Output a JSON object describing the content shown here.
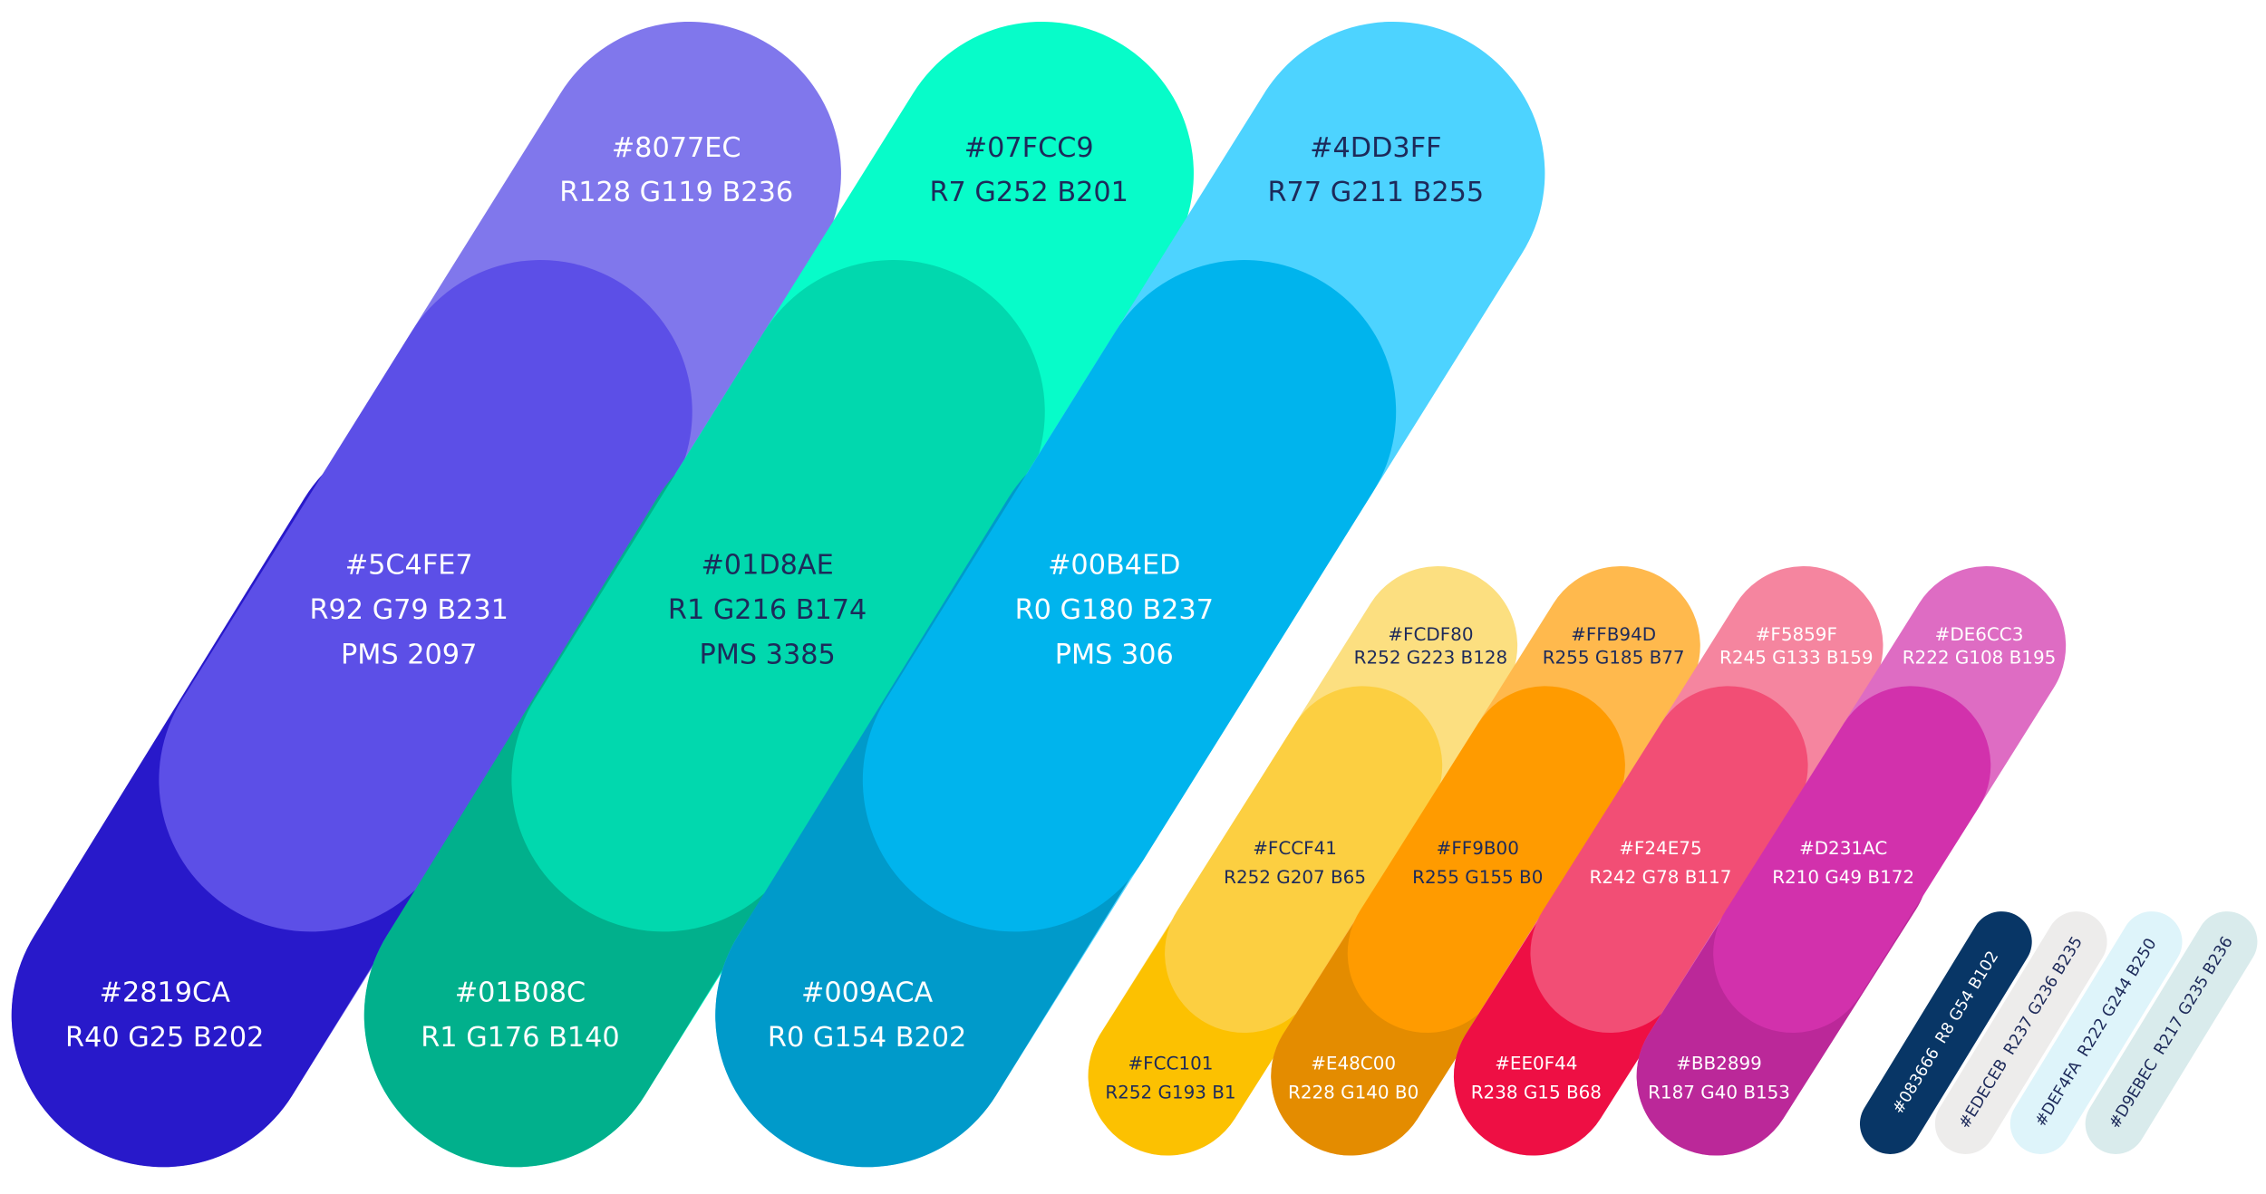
{
  "big": [
    {
      "swatches": [
        {
          "hex": "#8077EC",
          "rgb": "R128 G119 B236"
        },
        {
          "hex": "#5C4FE7",
          "rgb": "R92 G79 B231",
          "pms": "PMS 2097"
        },
        {
          "hex": "#2819CA",
          "rgb": "R40 G25 B202"
        }
      ]
    },
    {
      "swatches": [
        {
          "hex": "#07FCC9",
          "rgb": "R7 G252 B201"
        },
        {
          "hex": "#01D8AE",
          "rgb": "R1 G216 B174",
          "pms": "PMS 3385"
        },
        {
          "hex": "#01B08C",
          "rgb": "R1 G176 B140"
        }
      ]
    },
    {
      "swatches": [
        {
          "hex": "#4DD3FF",
          "rgb": "R77 G211 B255"
        },
        {
          "hex": "#00B4ED",
          "rgb": "R0 G180 B237",
          "pms": "PMS 306"
        },
        {
          "hex": "#009ACA",
          "rgb": "R0 G154 B202"
        }
      ]
    }
  ],
  "small": [
    {
      "swatches": [
        {
          "hex": "#FCDF80",
          "rgb": "R252 G223 B128"
        },
        {
          "hex": "#FCCF41",
          "rgb": "R252 G207 B65"
        },
        {
          "hex": "#FCC101",
          "rgb": "R252 G193 B1"
        }
      ]
    },
    {
      "swatches": [
        {
          "hex": "#FFB94D",
          "rgb": "R255 G185 B77"
        },
        {
          "hex": "#FF9B00",
          "rgb": "R255 G155 B0"
        },
        {
          "hex": "#E48C00",
          "rgb": "R228 G140 B0"
        }
      ]
    },
    {
      "swatches": [
        {
          "hex": "#F5859F",
          "rgb": "R245 G133 B159"
        },
        {
          "hex": "#F24E75",
          "rgb": "R242 G78 B117"
        },
        {
          "hex": "#EE0F44",
          "rgb": "R238 G15 B68"
        }
      ]
    },
    {
      "swatches": [
        {
          "hex": "#DE6CC3",
          "rgb": "R222 G108 B195"
        },
        {
          "hex": "#D231AC",
          "rgb": "R210 G49 B172"
        },
        {
          "hex": "#BB2899",
          "rgb": "R187 G40 B153"
        }
      ]
    }
  ],
  "tiny": [
    {
      "hex": "#083666",
      "rgb": "R8 G54 B102"
    },
    {
      "hex": "#EDECEB",
      "rgb": "R237 G236 B235"
    },
    {
      "hex": "#DEF4FA",
      "rgb": "R222 G244 B250"
    },
    {
      "hex": "#D9EBEC",
      "rgb": "R217 G235 B236"
    }
  ]
}
